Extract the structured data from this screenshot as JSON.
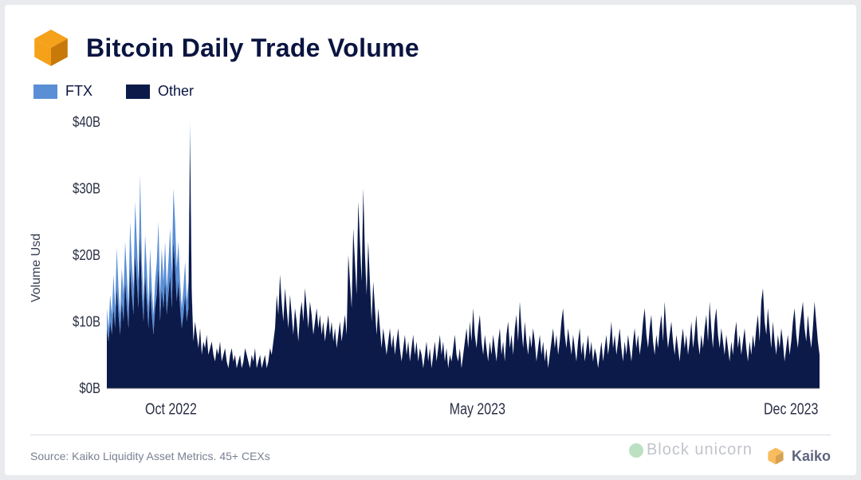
{
  "title": "Bitcoin Daily Trade Volume",
  "legend": {
    "items": [
      {
        "label": "FTX",
        "color": "#5a8fd6"
      },
      {
        "label": "Other",
        "color": "#0c1a4a"
      }
    ]
  },
  "chart": {
    "type": "area-stacked",
    "ylabel": "Volume Usd",
    "ylim": [
      0,
      40
    ],
    "ytick_step": 10,
    "ytick_prefix": "$",
    "ytick_suffix": "B",
    "background_color": "#ffffff",
    "axis_color": "#3a3f55",
    "xticks": [
      {
        "pos": 0.09,
        "label": "Oct 2022"
      },
      {
        "pos": 0.52,
        "label": "May 2023"
      },
      {
        "pos": 0.96,
        "label": "Dec 2023"
      }
    ],
    "series": {
      "other": {
        "color": "#0c1a4a",
        "values": [
          9,
          7,
          10,
          8,
          12,
          9,
          15,
          11,
          8,
          13,
          10,
          16,
          12,
          9,
          18,
          14,
          11,
          20,
          16,
          12,
          23,
          14,
          10,
          17,
          13,
          9,
          15,
          11,
          8,
          12,
          14,
          18,
          10,
          15,
          12,
          16,
          11,
          14,
          17,
          12,
          22,
          18,
          13,
          16,
          12,
          9,
          11,
          14,
          10,
          12,
          38,
          14,
          7,
          10,
          8,
          6,
          9,
          5,
          7,
          6,
          8,
          5,
          6,
          7,
          5,
          4,
          6,
          5,
          7,
          4,
          5,
          6,
          4,
          3,
          5,
          6,
          4,
          5,
          3,
          4,
          5,
          3,
          4,
          6,
          5,
          4,
          3,
          5,
          4,
          6,
          3,
          4,
          5,
          3,
          4,
          5,
          3,
          4,
          6,
          5,
          7,
          9,
          14,
          11,
          17,
          13,
          10,
          15,
          12,
          9,
          14,
          11,
          8,
          12,
          10,
          7,
          11,
          13,
          10,
          15,
          12,
          9,
          13,
          11,
          8,
          10,
          12,
          9,
          11,
          8,
          10,
          7,
          9,
          11,
          8,
          10,
          7,
          9,
          6,
          8,
          10,
          7,
          9,
          11,
          8,
          20,
          16,
          12,
          24,
          19,
          14,
          28,
          22,
          16,
          30,
          20,
          14,
          22,
          16,
          10,
          16,
          12,
          8,
          12,
          9,
          6,
          9,
          7,
          5,
          7,
          9,
          6,
          8,
          5,
          7,
          9,
          6,
          4,
          6,
          8,
          5,
          7,
          4,
          6,
          8,
          5,
          7,
          4,
          6,
          5,
          3,
          5,
          7,
          4,
          6,
          3,
          5,
          7,
          4,
          6,
          8,
          5,
          7,
          4,
          6,
          3,
          5,
          4,
          6,
          8,
          5,
          4,
          6,
          3,
          5,
          7,
          9,
          6,
          10,
          7,
          12,
          8,
          6,
          9,
          11,
          7,
          5,
          8,
          6,
          4,
          7,
          5,
          8,
          6,
          4,
          7,
          9,
          5,
          7,
          4,
          8,
          10,
          6,
          8,
          5,
          9,
          11,
          7,
          13,
          9,
          6,
          10,
          7,
          5,
          8,
          6,
          9,
          7,
          4,
          6,
          8,
          5,
          7,
          4,
          6,
          3,
          5,
          7,
          9,
          6,
          8,
          5,
          7,
          10,
          12,
          8,
          6,
          9,
          7,
          5,
          8,
          6,
          4,
          7,
          9,
          5,
          7,
          4,
          6,
          8,
          5,
          7,
          4,
          6,
          5,
          3,
          5,
          7,
          4,
          6,
          8,
          5,
          7,
          10,
          6,
          8,
          5,
          7,
          9,
          6,
          4,
          7,
          5,
          8,
          6,
          4,
          7,
          9,
          6,
          8,
          5,
          7,
          10,
          12,
          8,
          6,
          9,
          11,
          7,
          5,
          8,
          6,
          9,
          11,
          7,
          13,
          9,
          6,
          8,
          10,
          7,
          5,
          8,
          6,
          4,
          7,
          9,
          6,
          8,
          5,
          7,
          10,
          6,
          8,
          11,
          7,
          5,
          8,
          6,
          9,
          11,
          7,
          13,
          9,
          6,
          10,
          12,
          8,
          6,
          9,
          7,
          5,
          8,
          6,
          4,
          7,
          5,
          8,
          10,
          6,
          8,
          5,
          7,
          9,
          6,
          4,
          7,
          5,
          8,
          6,
          9,
          11,
          7,
          13,
          15,
          10,
          8,
          12,
          9,
          6,
          10,
          7,
          5,
          8,
          6,
          9,
          7,
          4,
          6,
          8,
          5,
          7,
          10,
          12,
          8,
          6,
          9,
          11,
          13,
          9,
          7,
          11,
          8,
          6,
          9,
          13,
          10,
          7,
          5
        ]
      },
      "ftx": {
        "color": "#5a8fd6",
        "values": [
          3,
          2,
          4,
          3,
          5,
          3,
          6,
          4,
          3,
          5,
          4,
          6,
          5,
          3,
          7,
          5,
          4,
          8,
          6,
          4,
          9,
          5,
          3,
          6,
          5,
          3,
          6,
          4,
          3,
          4,
          5,
          7,
          4,
          6,
          4,
          6,
          4,
          5,
          7,
          5,
          8,
          7,
          5,
          6,
          4,
          3,
          4,
          5,
          3,
          4,
          2,
          1,
          0,
          0,
          0,
          0,
          0,
          0,
          0,
          0,
          0,
          0,
          0,
          0,
          0,
          0,
          0,
          0,
          0,
          0,
          0,
          0,
          0,
          0,
          0,
          0,
          0,
          0,
          0,
          0,
          0,
          0,
          0,
          0,
          0,
          0,
          0,
          0,
          0,
          0,
          0,
          0,
          0,
          0,
          0,
          0,
          0,
          0,
          0,
          0,
          0,
          0,
          0,
          0,
          0,
          0,
          0,
          0,
          0,
          0,
          0,
          0,
          0,
          0,
          0,
          0,
          0,
          0,
          0,
          0,
          0,
          0,
          0,
          0,
          0,
          0,
          0,
          0,
          0,
          0,
          0,
          0,
          0,
          0,
          0,
          0,
          0,
          0,
          0,
          0,
          0,
          0,
          0,
          0,
          0,
          0,
          0,
          0,
          0,
          0,
          0,
          0,
          0,
          0,
          0,
          0,
          0,
          0,
          0,
          0,
          0,
          0,
          0,
          0,
          0,
          0,
          0,
          0,
          0,
          0,
          0,
          0,
          0,
          0,
          0,
          0,
          0,
          0,
          0,
          0,
          0,
          0,
          0,
          0,
          0,
          0,
          0,
          0,
          0,
          0,
          0,
          0,
          0,
          0,
          0,
          0,
          0,
          0,
          0,
          0,
          0,
          0,
          0,
          0,
          0,
          0,
          0,
          0,
          0,
          0,
          0,
          0,
          0,
          0,
          0,
          0,
          0,
          0,
          0,
          0,
          0,
          0,
          0,
          0,
          0,
          0,
          0,
          0,
          0,
          0,
          0,
          0,
          0,
          0,
          0,
          0,
          0,
          0,
          0,
          0,
          0,
          0,
          0,
          0,
          0,
          0,
          0,
          0,
          0,
          0,
          0,
          0,
          0,
          0,
          0,
          0,
          0,
          0,
          0,
          0,
          0,
          0,
          0,
          0,
          0,
          0,
          0,
          0,
          0,
          0,
          0,
          0,
          0,
          0,
          0,
          0,
          0,
          0,
          0,
          0,
          0,
          0,
          0,
          0,
          0,
          0,
          0,
          0,
          0,
          0,
          0,
          0,
          0,
          0,
          0,
          0,
          0,
          0,
          0,
          0,
          0,
          0,
          0,
          0,
          0,
          0,
          0,
          0,
          0,
          0,
          0,
          0,
          0,
          0,
          0,
          0,
          0,
          0,
          0,
          0,
          0,
          0,
          0,
          0,
          0,
          0,
          0,
          0,
          0,
          0,
          0,
          0,
          0,
          0,
          0,
          0,
          0,
          0,
          0,
          0,
          0,
          0,
          0,
          0,
          0,
          0,
          0,
          0,
          0,
          0,
          0,
          0,
          0,
          0,
          0,
          0,
          0,
          0,
          0,
          0,
          0,
          0,
          0,
          0,
          0,
          0,
          0,
          0,
          0,
          0,
          0,
          0,
          0,
          0,
          0,
          0,
          0,
          0,
          0,
          0,
          0,
          0,
          0,
          0,
          0,
          0,
          0,
          0,
          0,
          0,
          0,
          0,
          0,
          0,
          0,
          0,
          0,
          0,
          0,
          0,
          0,
          0,
          0,
          0,
          0,
          0,
          0,
          0,
          0,
          0,
          0,
          0,
          0,
          0,
          0,
          0,
          0,
          0,
          0,
          0,
          0,
          0,
          0,
          0,
          0,
          0,
          0,
          0,
          0
        ]
      }
    }
  },
  "footer": {
    "source": "Source: Kaiko Liquidity Asset Metrics. 45+ CEXs",
    "brand": "Kaiko"
  },
  "watermark": "Block unicorn",
  "logo_colors": {
    "top": "#f6a11a",
    "bottom": "#f6a11a",
    "shadow": "#c77a0a"
  }
}
